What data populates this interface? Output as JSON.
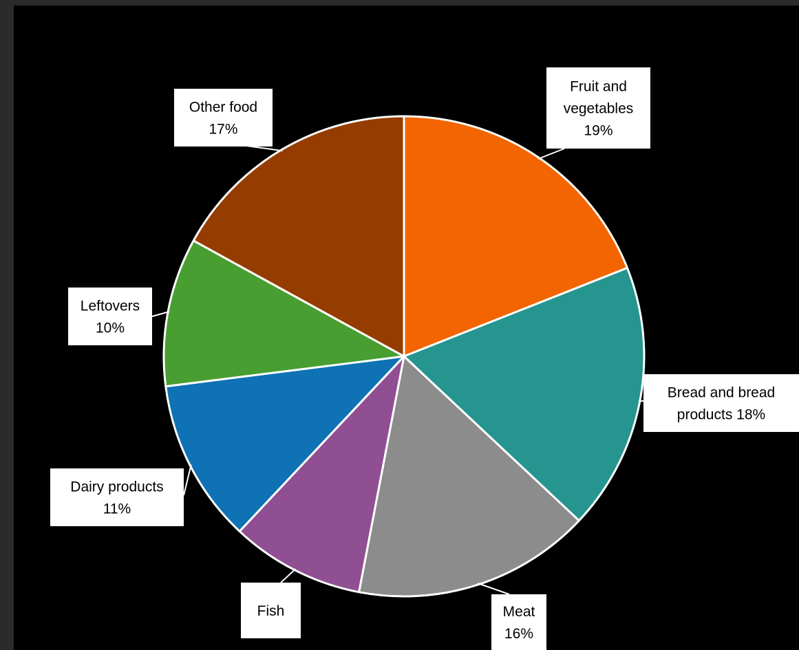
{
  "chart_data": {
    "type": "pie",
    "title": "",
    "start_angle_deg": 0,
    "direction": "clockwise",
    "slices": [
      {
        "label": "Fruit and vegetables",
        "percent_label": "19%",
        "value": 19,
        "color": "#f26500"
      },
      {
        "label": "Bread and bread products",
        "percent_label": "18%",
        "value": 18,
        "color": "#269590"
      },
      {
        "label": "Meat",
        "percent_label": "16%",
        "value": 16,
        "color": "#8c8c8c"
      },
      {
        "label": "Fish",
        "percent_label": "",
        "value": 9,
        "color": "#904f92"
      },
      {
        "label": "Dairy products",
        "percent_label": "11%",
        "value": 11,
        "color": "#0e72b5"
      },
      {
        "label": "Leftovers",
        "percent_label": "10%",
        "value": 10,
        "color": "#489e31"
      },
      {
        "label": "Other food",
        "percent_label": "17%",
        "value": 17,
        "color": "#953c00"
      }
    ],
    "callouts": [
      {
        "lines": [
          "Fruit and",
          "vegetables",
          "19%"
        ]
      },
      {
        "lines": [
          "Bread and bread",
          "products 18%"
        ]
      },
      {
        "lines": [
          "Meat",
          "16%"
        ]
      },
      {
        "lines": [
          "Fish"
        ]
      },
      {
        "lines": [
          "Dairy products",
          "11%"
        ]
      },
      {
        "lines": [
          "Leftovers",
          "10%"
        ]
      },
      {
        "lines": [
          "Other food",
          "17%"
        ]
      }
    ],
    "colors": {
      "background": "#000000",
      "slice_border": "#ffffff",
      "label_box": "#ffffff",
      "label_text": "#000000"
    }
  }
}
